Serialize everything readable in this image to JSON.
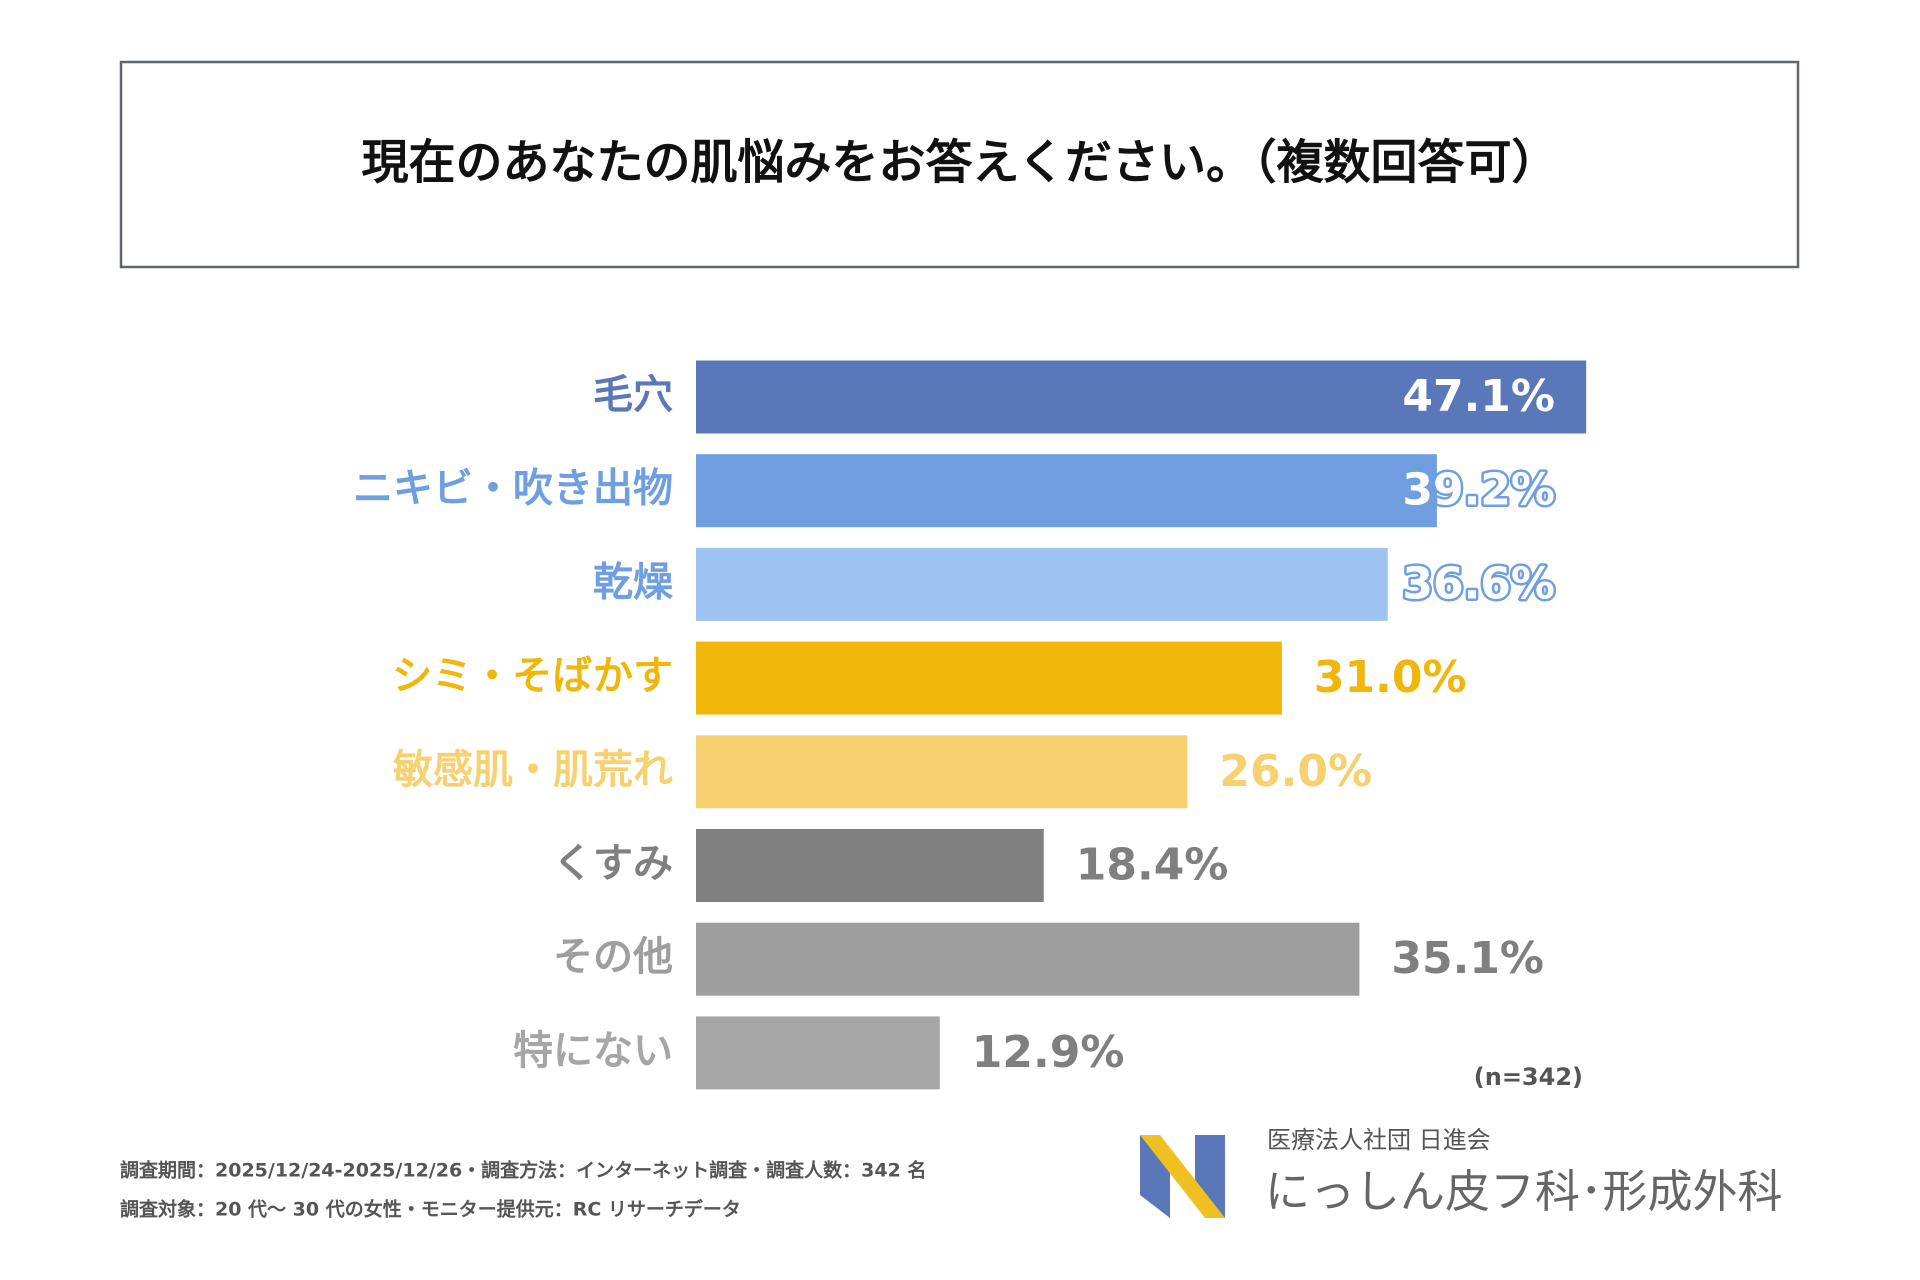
{
  "chart_data": {
    "type": "bar",
    "orientation": "horizontal",
    "title": "現在のあなたの肌悩みをお答えください。（複数回答可）",
    "categories": [
      "毛穴",
      "ニキビ・吹き出物",
      "乾燥",
      "シミ・そばかす",
      "敏感肌・肌荒れ",
      "くすみ",
      "その他",
      "特にない"
    ],
    "values": [
      47.1,
      39.2,
      36.6,
      31.0,
      26.0,
      18.4,
      35.1,
      12.9
    ],
    "value_labels": [
      "47.1%",
      "39.2%",
      "36.6%",
      "31.0%",
      "26.0%",
      "18.4%",
      "35.1%",
      "12.9%"
    ],
    "colors": [
      "#5a78b9",
      "#6f9fe0",
      "#9ec3f3",
      "#f0b60a",
      "#f7d070",
      "#808080",
      "#9e9e9e",
      "#a6a6a6"
    ],
    "note": "(n=342)"
  },
  "footer": {
    "lines": [
      "調査期間：2025/12/24-2025/12/26・調査方法：インターネット調査・調査人数：342 名",
      "調査対象：20 代～ 30 代の女性・モニター提供元：RC リサーチデータ"
    ],
    "organization": "医療法人社団 日進会",
    "clinic": "にっしん皮フ科･形成外科"
  }
}
